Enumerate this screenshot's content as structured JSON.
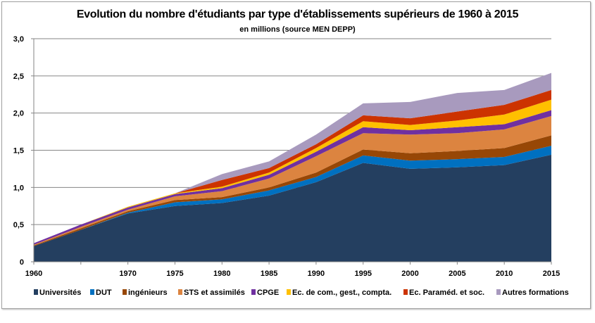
{
  "chart_data": {
    "type": "area",
    "stacked": true,
    "title": "Evolution du nombre d'étudiants par type d'établissements supérieurs de 1960 à 2015",
    "subtitle": "en millions   (source MEN DEPP)",
    "xlabel": "",
    "ylabel": "",
    "categories": [
      "1960",
      "1965",
      "1970",
      "1975",
      "1980",
      "1985",
      "1990",
      "1995",
      "2000",
      "2005",
      "2010",
      "2015"
    ],
    "category_labels": [
      "1960",
      "",
      "1970",
      "1975",
      "1980",
      "1985",
      "1990",
      "1995",
      "2000",
      "2005",
      "2010",
      "2015"
    ],
    "ylim": [
      0,
      3.0
    ],
    "y_ticks": [
      "0",
      "0,5",
      "1,0",
      "1,5",
      "2,0",
      "2,5",
      "3,0"
    ],
    "grid": true,
    "legend_position": "bottom",
    "series": [
      {
        "name": "Universités",
        "color": "#243f60",
        "values": [
          0.21,
          0.43,
          0.65,
          0.75,
          0.79,
          0.89,
          1.07,
          1.33,
          1.25,
          1.27,
          1.3,
          1.44
        ]
      },
      {
        "name": "DUT",
        "color": "#0070c0",
        "values": [
          0.0,
          0.0,
          0.01,
          0.05,
          0.05,
          0.07,
          0.07,
          0.1,
          0.11,
          0.11,
          0.11,
          0.12
        ]
      },
      {
        "name": "ingénieurs",
        "color": "#974706",
        "values": [
          0.01,
          0.02,
          0.02,
          0.03,
          0.03,
          0.04,
          0.06,
          0.08,
          0.1,
          0.11,
          0.12,
          0.14
        ]
      },
      {
        "name": "STS et assimilés",
        "color": "#dc8440",
        "values": [
          0.01,
          0.02,
          0.02,
          0.05,
          0.08,
          0.12,
          0.22,
          0.22,
          0.25,
          0.24,
          0.25,
          0.26
        ]
      },
      {
        "name": "CPGE",
        "color": "#7030a0",
        "values": [
          0.02,
          0.03,
          0.03,
          0.03,
          0.04,
          0.05,
          0.06,
          0.08,
          0.06,
          0.08,
          0.07,
          0.08
        ]
      },
      {
        "name": "Ec. de com., gest., compta.",
        "color": "#ffc000",
        "values": [
          0.0,
          0.0,
          0.01,
          0.01,
          0.02,
          0.03,
          0.05,
          0.08,
          0.07,
          0.09,
          0.13,
          0.14
        ]
      },
      {
        "name": "Ec. Paraméd. et soc.",
        "color": "#cc3300",
        "values": [
          0.0,
          0.0,
          0.0,
          0.0,
          0.09,
          0.06,
          0.05,
          0.08,
          0.09,
          0.12,
          0.13,
          0.13
        ]
      },
      {
        "name": "Autres formations",
        "color": "#a89abe",
        "values": [
          0.0,
          0.0,
          0.0,
          0.0,
          0.08,
          0.09,
          0.13,
          0.16,
          0.22,
          0.25,
          0.2,
          0.23
        ]
      }
    ]
  }
}
